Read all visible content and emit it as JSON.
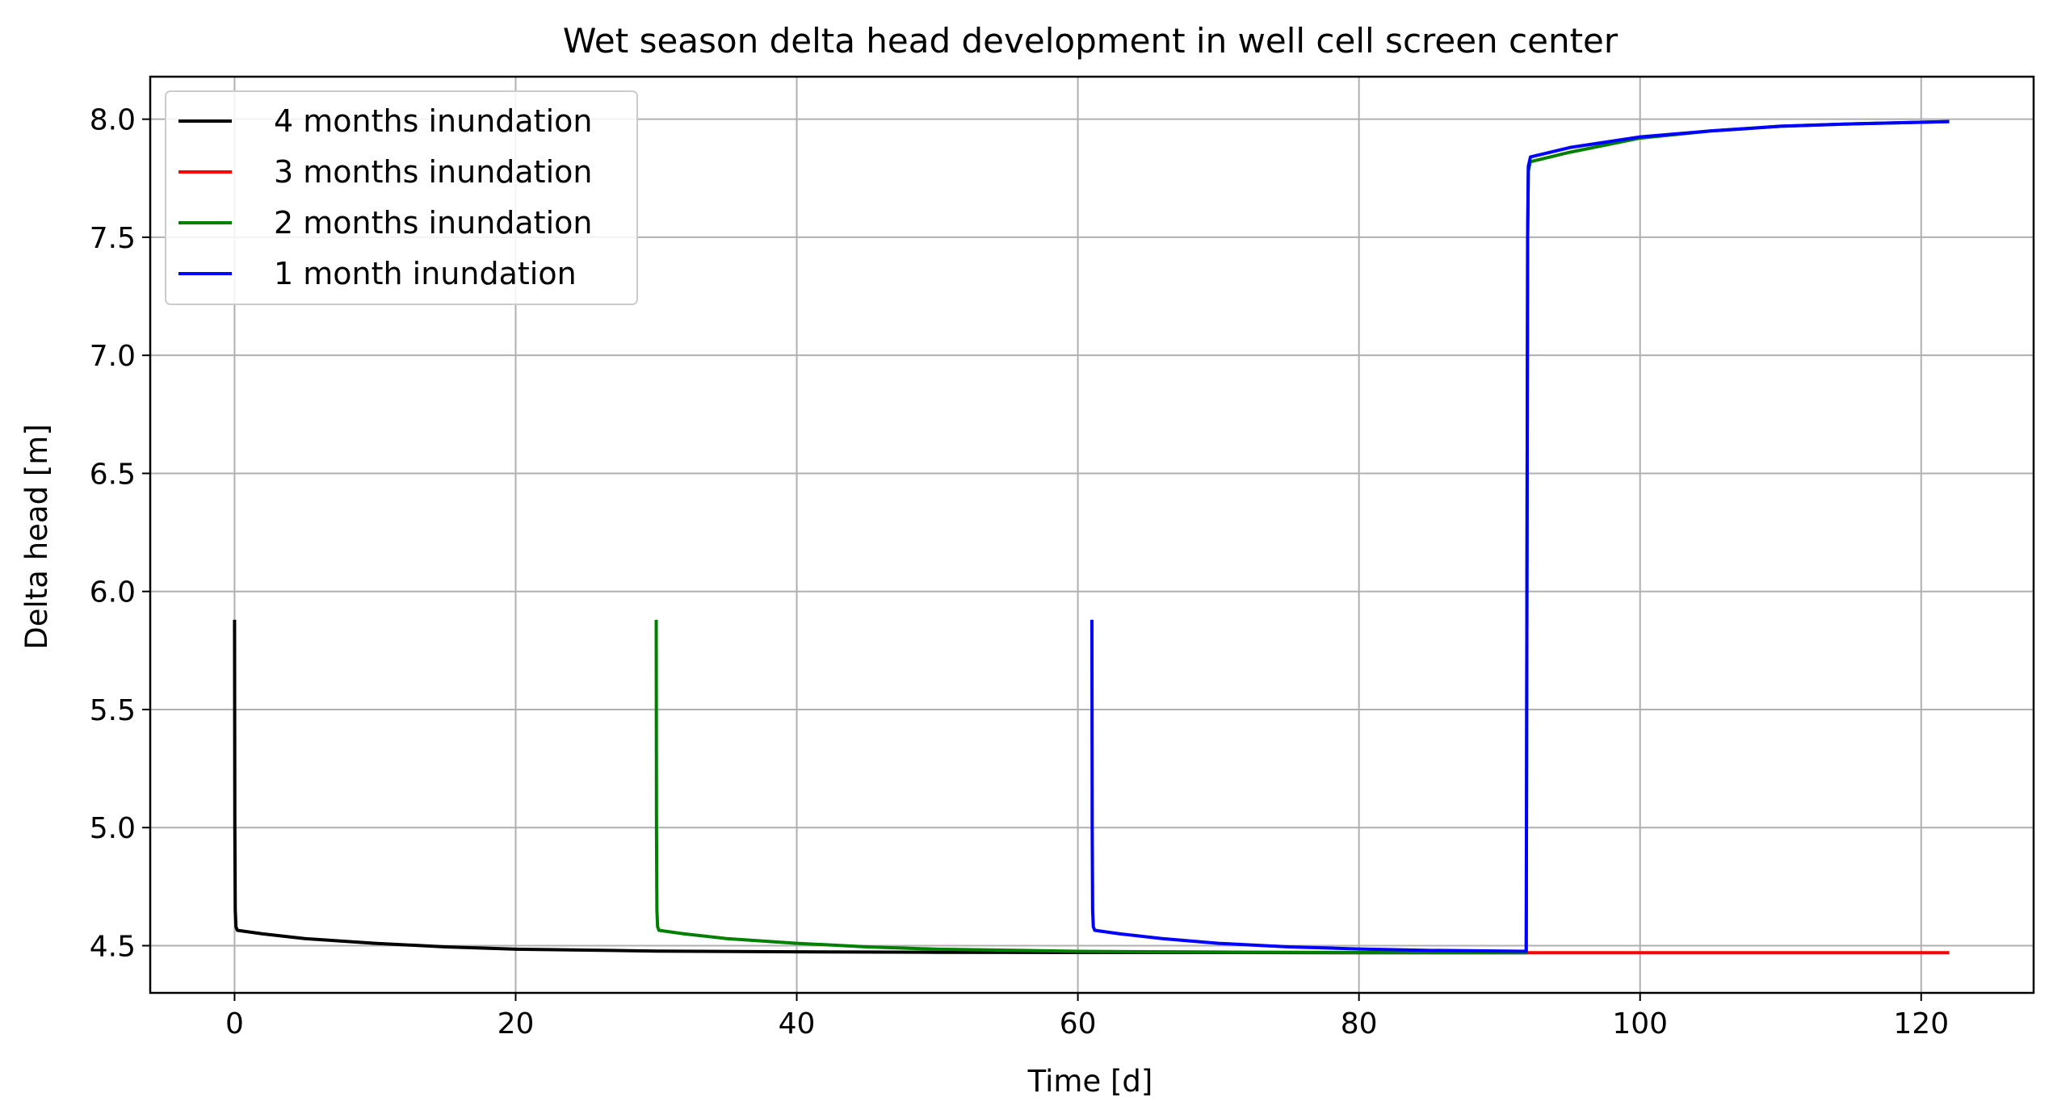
{
  "chart_data": {
    "type": "line",
    "title": "Wet season delta head development in well cell screen center",
    "xlabel": "Time [d]",
    "ylabel": "Delta head [m]",
    "xlim": [
      -6,
      128
    ],
    "ylim": [
      4.3,
      8.18
    ],
    "xticks": [
      0,
      20,
      40,
      60,
      80,
      100,
      120
    ],
    "yticks": [
      4.5,
      5.0,
      5.5,
      6.0,
      6.5,
      7.0,
      7.5,
      8.0
    ],
    "xtick_labels": [
      "0",
      "20",
      "40",
      "60",
      "80",
      "100",
      "120"
    ],
    "ytick_labels": [
      "4.5",
      "5.0",
      "5.5",
      "6.0",
      "6.5",
      "7.0",
      "7.5",
      "8.0"
    ],
    "grid": true,
    "legend_position": "top-left",
    "series": [
      {
        "name": "4 months inundation",
        "color": "#000000",
        "points": [
          [
            0,
            5.88
          ],
          [
            0.02,
            5.0
          ],
          [
            0.05,
            4.65
          ],
          [
            0.1,
            4.58
          ],
          [
            0.2,
            4.565
          ],
          [
            2,
            4.55
          ],
          [
            5,
            4.53
          ],
          [
            10,
            4.51
          ],
          [
            15,
            4.495
          ],
          [
            20,
            4.485
          ],
          [
            30,
            4.477
          ],
          [
            40,
            4.474
          ],
          [
            50,
            4.472
          ],
          [
            60,
            4.471
          ],
          [
            70,
            4.471
          ],
          [
            80,
            4.47
          ],
          [
            92,
            4.47
          ]
        ]
      },
      {
        "name": "3 months inundation",
        "color": "#ff0000",
        "points": [
          [
            92,
            4.47
          ],
          [
            100,
            4.47
          ],
          [
            110,
            4.47
          ],
          [
            122,
            4.47
          ]
        ]
      },
      {
        "name": "2 months inundation",
        "color": "#008000",
        "points": [
          [
            30,
            5.88
          ],
          [
            30.02,
            5.0
          ],
          [
            30.05,
            4.65
          ],
          [
            30.1,
            4.58
          ],
          [
            30.2,
            4.565
          ],
          [
            32,
            4.55
          ],
          [
            35,
            4.53
          ],
          [
            40,
            4.51
          ],
          [
            45,
            4.495
          ],
          [
            50,
            4.485
          ],
          [
            60,
            4.476
          ],
          [
            70,
            4.473
          ],
          [
            80,
            4.471
          ],
          [
            91.9,
            4.47
          ],
          [
            92,
            7.5
          ],
          [
            92.05,
            7.78
          ],
          [
            92.2,
            7.82
          ],
          [
            95,
            7.86
          ],
          [
            100,
            7.92
          ],
          [
            105,
            7.95
          ],
          [
            110,
            7.97
          ],
          [
            115,
            7.98
          ],
          [
            122,
            7.99
          ]
        ]
      },
      {
        "name": "1 month inundation",
        "color": "#0000ff",
        "points": [
          [
            61,
            5.88
          ],
          [
            61.02,
            5.0
          ],
          [
            61.05,
            4.65
          ],
          [
            61.1,
            4.58
          ],
          [
            61.2,
            4.565
          ],
          [
            63,
            4.55
          ],
          [
            66,
            4.53
          ],
          [
            70,
            4.51
          ],
          [
            75,
            4.495
          ],
          [
            80,
            4.486
          ],
          [
            85,
            4.48
          ],
          [
            91.9,
            4.476
          ],
          [
            92,
            7.5
          ],
          [
            92.05,
            7.8
          ],
          [
            92.2,
            7.84
          ],
          [
            95,
            7.88
          ],
          [
            100,
            7.925
          ],
          [
            105,
            7.95
          ],
          [
            110,
            7.97
          ],
          [
            115,
            7.98
          ],
          [
            122,
            7.99
          ]
        ]
      }
    ]
  }
}
